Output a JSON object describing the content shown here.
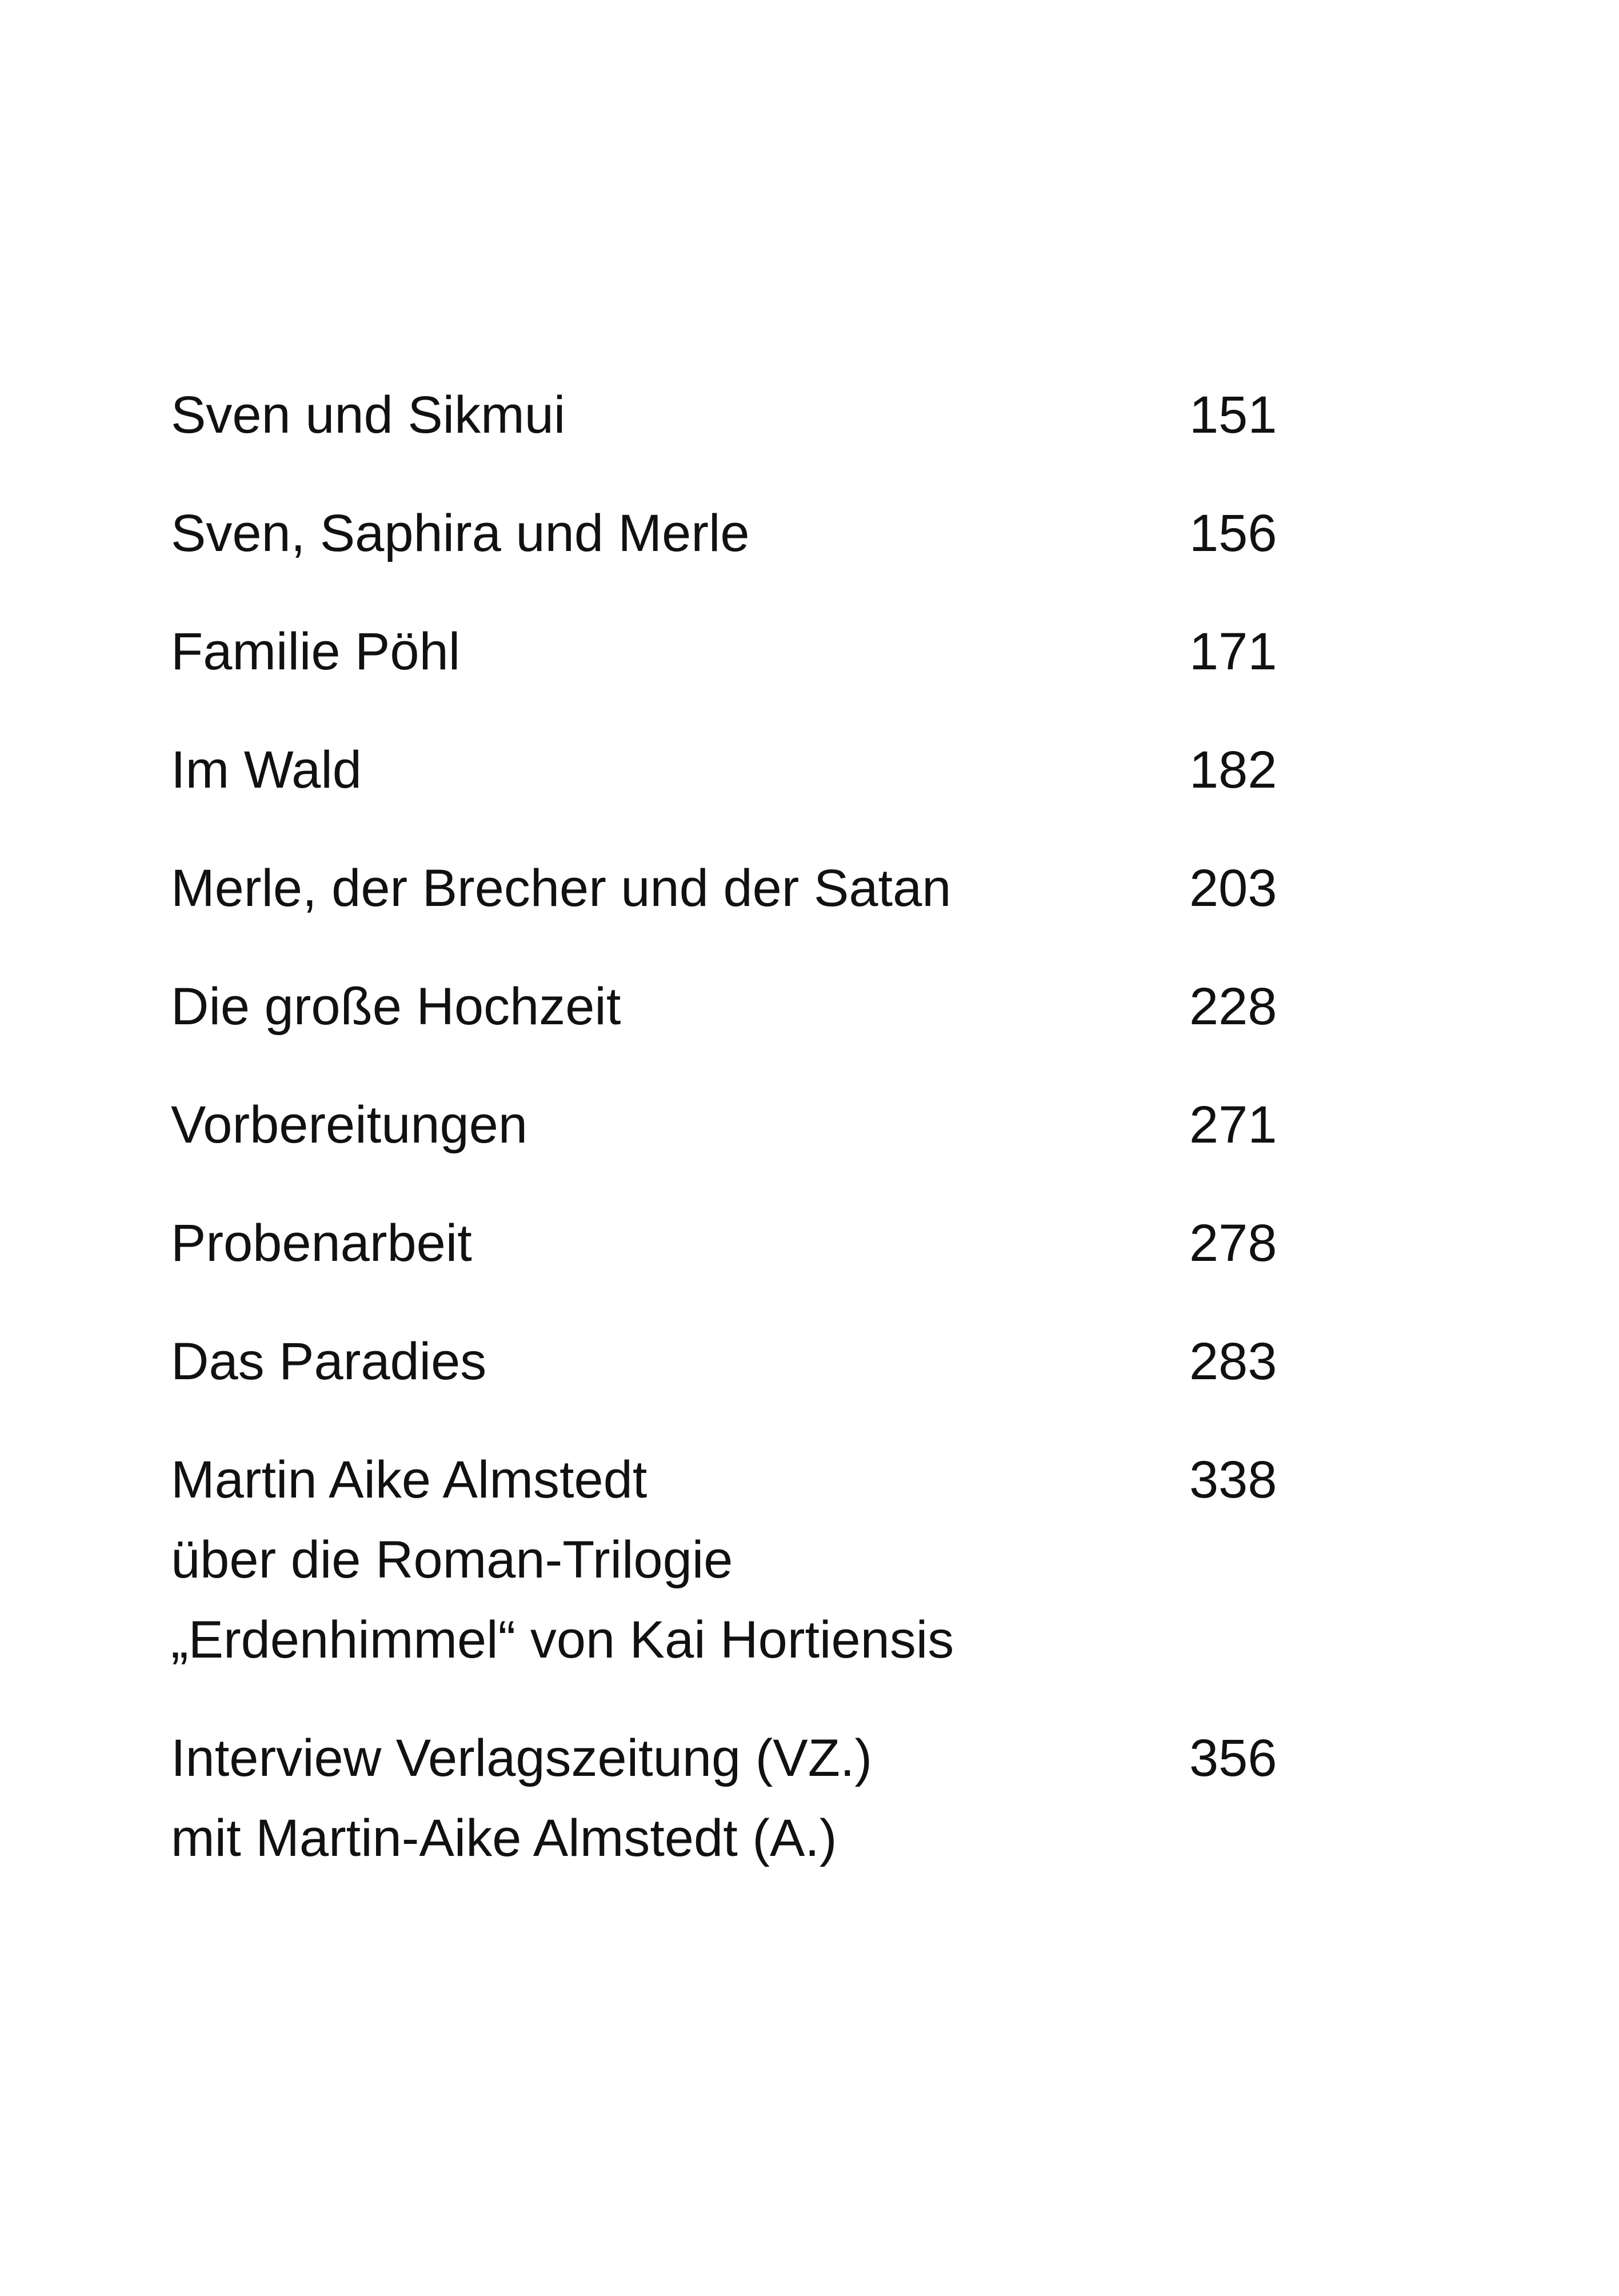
{
  "toc": {
    "entries": [
      {
        "title": [
          "Sven und Sikmui"
        ],
        "page": 151
      },
      {
        "title": [
          "Sven, Saphira und Merle"
        ],
        "page": 156
      },
      {
        "title": [
          "Familie Pöhl"
        ],
        "page": 171
      },
      {
        "title": [
          "Im Wald"
        ],
        "page": 182
      },
      {
        "title": [
          "Merle, der Brecher und der Satan"
        ],
        "page": 203
      },
      {
        "title": [
          "Die große Hochzeit"
        ],
        "page": 228
      },
      {
        "title": [
          "Vorbereitungen"
        ],
        "page": 271
      },
      {
        "title": [
          "Probenarbeit"
        ],
        "page": 278
      },
      {
        "title": [
          "Das Paradies"
        ],
        "page": 283
      },
      {
        "title": [
          "Martin Aike Almstedt",
          "über die Roman-Trilogie",
          "„Erdenhimmel“ von Kai Hortiensis"
        ],
        "page": 338
      },
      {
        "title": [
          "Interview Verlagszeitung (VZ.)",
          "mit Martin-Aike Almstedt (A.)"
        ],
        "page": 356
      }
    ]
  }
}
